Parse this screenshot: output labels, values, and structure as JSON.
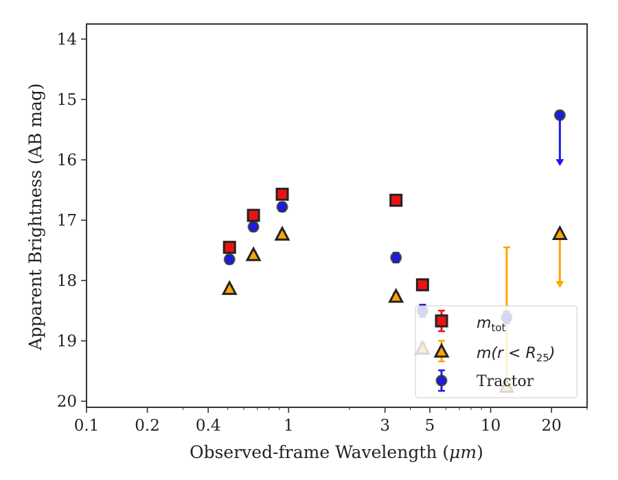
{
  "chart_data": {
    "type": "scatter",
    "title": "",
    "xlabel": "Observed-frame Wavelength (",
    "xlabel_unit": "μm",
    "xlabel_close": ")",
    "ylabel": "Apparent Brightness (AB mag)",
    "xscale": "log",
    "xlim": [
      0.1,
      30
    ],
    "ylim": [
      20.1,
      13.75
    ],
    "y_inverted": true,
    "grid": false,
    "legend_position": "bottom-right",
    "xticks": [
      {
        "value": 0.1,
        "label": "0.1"
      },
      {
        "value": 0.2,
        "label": "0.2"
      },
      {
        "value": 0.4,
        "label": "0.4"
      },
      {
        "value": 1,
        "label": "1"
      },
      {
        "value": 3,
        "label": "3"
      },
      {
        "value": 5,
        "label": "5"
      },
      {
        "value": 10,
        "label": "10"
      },
      {
        "value": 20,
        "label": "20"
      }
    ],
    "yticks": [
      {
        "value": 14,
        "label": "14"
      },
      {
        "value": 15,
        "label": "15"
      },
      {
        "value": 16,
        "label": "16"
      },
      {
        "value": 17,
        "label": "17"
      },
      {
        "value": 18,
        "label": "18"
      },
      {
        "value": 19,
        "label": "19"
      },
      {
        "value": 20,
        "label": "20"
      }
    ],
    "series": [
      {
        "name": "m_tot",
        "legend_main": "m",
        "legend_sub": "tot",
        "marker": "square",
        "color": "#ee1111",
        "points": [
          {
            "x": 0.51,
            "y": 17.45,
            "err": 0.05
          },
          {
            "x": 0.67,
            "y": 16.92,
            "err": 0.05
          },
          {
            "x": 0.93,
            "y": 16.57,
            "err": 0.05
          },
          {
            "x": 3.4,
            "y": 16.67,
            "err": 0.04
          },
          {
            "x": 4.6,
            "y": 18.07,
            "err": 0.06
          }
        ]
      },
      {
        "name": "m(r < R25)",
        "legend_main": "m(r < R",
        "legend_sub": "25",
        "legend_close": ")",
        "marker": "triangle",
        "color": "#ffa500",
        "points": [
          {
            "x": 0.51,
            "y": 18.13,
            "err": 0.04
          },
          {
            "x": 0.67,
            "y": 17.57,
            "err": 0.04
          },
          {
            "x": 0.93,
            "y": 17.23,
            "err": 0.04
          },
          {
            "x": 3.4,
            "y": 18.26,
            "err": 0.05
          },
          {
            "x": 4.6,
            "y": 19.12,
            "err": 0.08
          },
          {
            "x": 12,
            "y": 19.75,
            "err_upper": 2.3,
            "err_lower": 0.0
          },
          {
            "x": 22,
            "y": 17.22,
            "upper_limit_to": 18.1
          }
        ]
      },
      {
        "name": "Tractor",
        "legend_main": "Tractor",
        "marker": "circle",
        "color": "#1a1af0",
        "points": [
          {
            "x": 0.51,
            "y": 17.65,
            "err": 0.07
          },
          {
            "x": 0.67,
            "y": 17.11,
            "err": 0.07
          },
          {
            "x": 0.93,
            "y": 16.78,
            "err": 0.07
          },
          {
            "x": 3.4,
            "y": 17.62,
            "err": 0.08
          },
          {
            "x": 4.6,
            "y": 18.5,
            "err": 0.1
          },
          {
            "x": 12,
            "y": 18.61,
            "err": 0.1
          },
          {
            "x": 22,
            "y": 15.26,
            "upper_limit_to": 16.08
          }
        ]
      }
    ]
  }
}
